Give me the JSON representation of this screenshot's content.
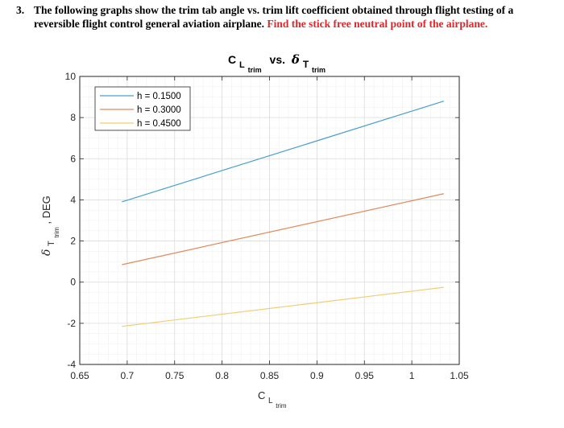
{
  "question": {
    "number": "3.",
    "text": "The following graphs show the trim tab angle vs. trim lift coefficient obtained through flight testing of a reversible flight control general aviation airplane.",
    "highlight": "Find the stick free neutral point of the airplane."
  },
  "chart_data": {
    "type": "line",
    "title": {
      "lhs_main": "C",
      "lhs_sub": "L",
      "lhs_subsub": "trim",
      "middle": "vs.",
      "rhs_main": "δ",
      "rhs_sub": "T",
      "rhs_subsub": "trim"
    },
    "xlabel": {
      "main": "C",
      "sub": "L",
      "subsub": "trim"
    },
    "ylabel": {
      "main": "δ",
      "sub": "T",
      "subsub": "trim",
      "unit": ", DEG"
    },
    "xlim": [
      0.65,
      1.05
    ],
    "ylim": [
      -4,
      10
    ],
    "xticks": [
      0.65,
      0.7,
      0.75,
      0.8,
      0.85,
      0.9,
      0.95,
      1,
      1.05
    ],
    "xtick_labels": [
      "0.65",
      "0.7",
      "0.75",
      "0.8",
      "0.85",
      "0.9",
      "0.95",
      "1",
      "1.05"
    ],
    "yticks": [
      -4,
      -2,
      0,
      2,
      4,
      6,
      8,
      10
    ],
    "ytick_labels": [
      "-4",
      "-2",
      "0",
      "2",
      "4",
      "6",
      "8",
      "10"
    ],
    "grid": true,
    "legend_position": "top-left",
    "series": [
      {
        "name": "h = 0.1500",
        "color": "#4a9fcf",
        "x": [
          0.6944,
          1.0337
        ],
        "y": [
          3.9,
          8.8
        ]
      },
      {
        "name": "h = 0.3000",
        "color": "#e08a5d",
        "x": [
          0.6944,
          1.0337
        ],
        "y": [
          0.85,
          4.3
        ]
      },
      {
        "name": "h = 0.4500",
        "color": "#f2cc72",
        "x": [
          0.6944,
          1.0337
        ],
        "y": [
          -2.15,
          -0.25
        ]
      }
    ]
  }
}
